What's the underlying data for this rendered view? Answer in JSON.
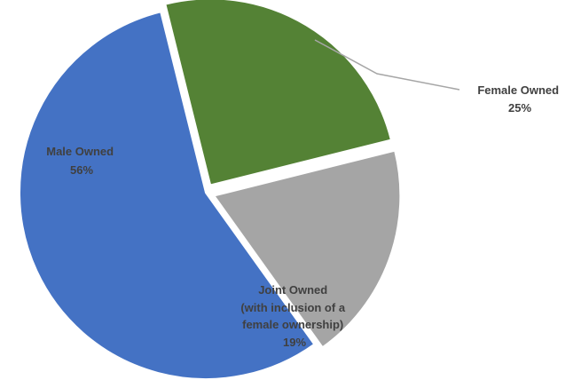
{
  "chart_data": {
    "type": "pie",
    "categories": [
      "Female Owned",
      "Joint Owned\n(with inclusion of a\nfemale ownership)",
      "Male Owned"
    ],
    "values": [
      25,
      19,
      56
    ],
    "data_labels": [
      "25%",
      "19%",
      "56%"
    ],
    "colors": [
      "#548235",
      "#a5a5a5",
      "#4472c4"
    ],
    "exploded": [
      true,
      true,
      false
    ],
    "title": "",
    "legend": "none",
    "label_color": "#404040"
  }
}
